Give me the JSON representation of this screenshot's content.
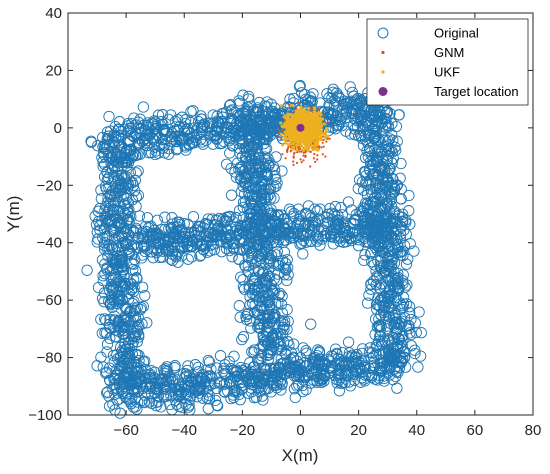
{
  "chart_data": {
    "type": "scatter",
    "title": "",
    "xlabel": "X(m)",
    "ylabel": "Y(m)",
    "xlim": [
      -80,
      80
    ],
    "ylim": [
      -100,
      40
    ],
    "xticks": [
      -60,
      -40,
      -20,
      0,
      20,
      40,
      60,
      80
    ],
    "yticks": [
      -100,
      -80,
      -60,
      -40,
      -20,
      0,
      20,
      40
    ],
    "grid": false,
    "legend_position": "top-right",
    "colors": {
      "original": "#1f77b4",
      "gnm": "#d95319",
      "ukf": "#edb120",
      "target": "#7e2f8e"
    },
    "series": [
      {
        "name": "Original",
        "marker": "circle-open",
        "description_shape": "grid-of-tracks",
        "tracks": [
          {
            "from": [
              -63,
              -5
            ],
            "to": [
              26,
              7
            ]
          },
          {
            "from": [
              -60,
              -40
            ],
            "to": [
              33,
              -33
            ]
          },
          {
            "from": [
              -60,
              -92
            ],
            "to": [
              33,
              -82
            ]
          },
          {
            "from": [
              -64,
              -6
            ],
            "to": [
              -60,
              -92
            ]
          },
          {
            "from": [
              -17,
              5
            ],
            "to": [
              -10,
              -85
            ]
          },
          {
            "from": [
              26,
              7
            ],
            "to": [
              33,
              -82
            ]
          }
        ],
        "spread": 4
      },
      {
        "name": "GNM",
        "marker": "dot",
        "center": [
          1,
          -2
        ],
        "spread": 4
      },
      {
        "name": "UKF",
        "marker": "dot",
        "center": [
          1,
          0
        ],
        "spread": 3
      },
      {
        "name": "Target location",
        "marker": "filled-circle",
        "x": [
          0
        ],
        "y": [
          0
        ]
      }
    ]
  }
}
